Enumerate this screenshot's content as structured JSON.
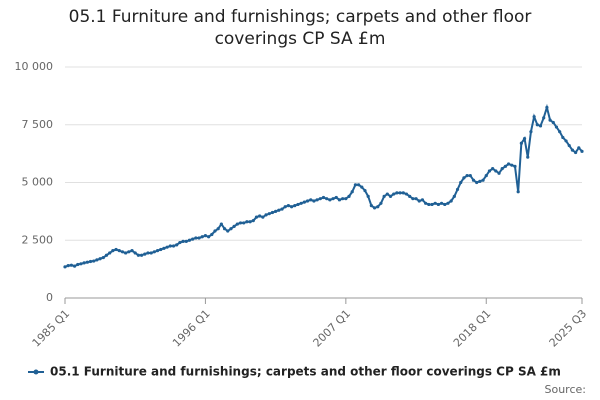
{
  "chart_data": {
    "type": "line",
    "title": "05.1 Furniture and furnishings; carpets and other floor coverings CP SA £m",
    "source": "Source:",
    "categories": [
      "1985 Q1",
      null,
      null,
      null,
      null,
      null,
      null,
      null,
      null,
      null,
      null,
      null,
      null,
      null,
      null,
      null,
      null,
      null,
      null,
      null,
      null,
      null,
      null,
      null,
      null,
      null,
      null,
      null,
      null,
      null,
      null,
      null,
      null,
      null,
      null,
      null,
      null,
      null,
      null,
      null,
      null,
      null,
      null,
      null,
      "1996 Q1",
      null,
      null,
      null,
      null,
      null,
      null,
      null,
      null,
      null,
      null,
      null,
      null,
      null,
      null,
      null,
      null,
      null,
      null,
      null,
      null,
      null,
      null,
      null,
      null,
      null,
      null,
      null,
      null,
      null,
      null,
      null,
      null,
      null,
      null,
      null,
      null,
      null,
      null,
      null,
      null,
      null,
      null,
      null,
      "2007 Q1",
      null,
      null,
      null,
      null,
      null,
      null,
      null,
      null,
      null,
      null,
      null,
      null,
      null,
      null,
      null,
      null,
      null,
      null,
      null,
      null,
      null,
      null,
      null,
      null,
      null,
      null,
      null,
      null,
      null,
      null,
      null,
      null,
      null,
      null,
      null,
      null,
      null,
      null,
      null,
      null,
      null,
      null,
      null,
      "2018 Q1",
      null,
      null,
      null,
      null,
      null,
      null,
      null,
      null,
      null,
      null,
      null,
      null,
      null,
      null,
      null,
      null,
      null,
      null,
      null,
      null,
      null,
      null,
      null,
      null,
      null,
      null,
      null,
      null,
      null,
      "2025 Q3"
    ],
    "series": [
      {
        "name": "05.1 Furniture and furnishings; carpets and other floor coverings CP SA £m",
        "color": "#206095",
        "values": [
          1350,
          1400,
          1420,
          1380,
          1450,
          1480,
          1520,
          1550,
          1580,
          1600,
          1650,
          1700,
          1750,
          1850,
          1950,
          2050,
          2100,
          2050,
          2000,
          1950,
          2000,
          2050,
          1950,
          1850,
          1850,
          1900,
          1950,
          1950,
          2000,
          2050,
          2100,
          2150,
          2200,
          2250,
          2250,
          2300,
          2400,
          2450,
          2450,
          2500,
          2550,
          2600,
          2600,
          2650,
          2700,
          2650,
          2750,
          2900,
          3000,
          3200,
          3000,
          2900,
          3000,
          3100,
          3200,
          3250,
          3250,
          3300,
          3300,
          3350,
          3500,
          3550,
          3500,
          3600,
          3650,
          3700,
          3750,
          3800,
          3850,
          3950,
          4000,
          3950,
          4000,
          4050,
          4100,
          4150,
          4200,
          4250,
          4200,
          4250,
          4300,
          4350,
          4300,
          4250,
          4300,
          4350,
          4250,
          4300,
          4300,
          4400,
          4600,
          4900,
          4900,
          4800,
          4650,
          4400,
          4000,
          3900,
          3950,
          4100,
          4400,
          4500,
          4400,
          4500,
          4550,
          4550,
          4550,
          4500,
          4400,
          4300,
          4300,
          4200,
          4250,
          4100,
          4050,
          4050,
          4100,
          4050,
          4100,
          4050,
          4100,
          4200,
          4400,
          4700,
          5000,
          5200,
          5300,
          5300,
          5100,
          5000,
          5050,
          5100,
          5300,
          5500,
          5600,
          5500,
          5400,
          5600,
          5700,
          5800,
          5750,
          5700,
          4600,
          6700,
          6900,
          6100,
          7200,
          7850,
          7500,
          7450,
          7800,
          8250,
          7700,
          7600,
          7400,
          7200,
          6950,
          6800,
          6600,
          6400,
          6300,
          6500,
          6350
        ]
      }
    ],
    "ylim": [
      0,
      10000
    ],
    "yticks": [
      0,
      {
        "value": 2500,
        "label": "2 500"
      },
      {
        "value": 5000,
        "label": "5 000"
      },
      {
        "value": 7500,
        "label": "7 500"
      },
      {
        "value": 10000,
        "label": "10 000"
      }
    ],
    "grid": true
  }
}
